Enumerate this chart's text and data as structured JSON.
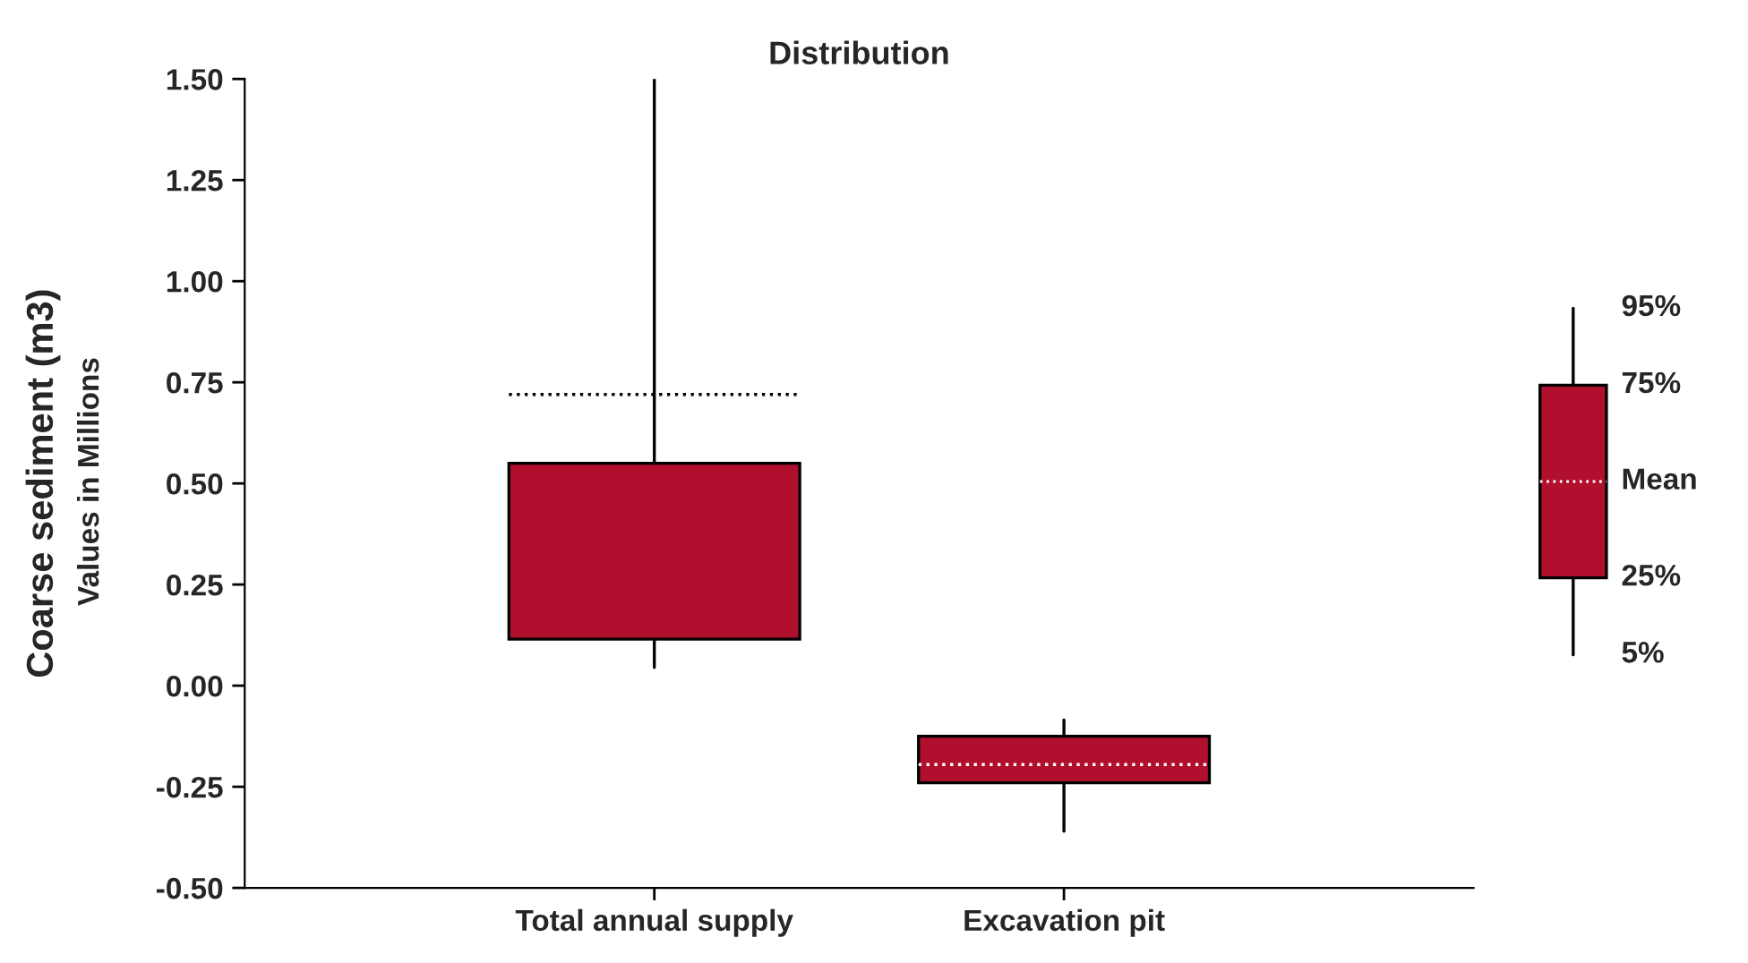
{
  "chart_data": {
    "type": "box",
    "title": "Distribution",
    "ylabel": "Coarse sediment (m3)",
    "annotations": [
      "Values in Millions",
      "95%",
      "75%",
      "Mean",
      "25%",
      "5%"
    ],
    "categories": [
      "Total annual supply",
      "Excavation pit"
    ],
    "color": "#b0102e",
    "boxes": [
      {
        "low": 0.045,
        "q1": 0.115,
        "q3": 0.55,
        "high": 1.5,
        "mean": 0.72
      },
      {
        "low": -0.36,
        "q1": -0.24,
        "q3": -0.125,
        "high": -0.085,
        "mean": -0.195
      }
    ],
    "ylim": [
      -0.5,
      1.5
    ],
    "yticks": [
      {
        "value": -0.5,
        "label": "-0.50"
      },
      {
        "value": -0.25,
        "label": "-0.25"
      },
      {
        "value": 0,
        "label": "0.00"
      },
      {
        "value": 0.25,
        "label": "0.25"
      },
      {
        "value": 0.5,
        "label": "0.50"
      },
      {
        "value": 0.75,
        "label": "0.75"
      },
      {
        "value": 1.0,
        "label": "1.00"
      },
      {
        "value": 1.25,
        "label": "1.25"
      },
      {
        "value": 1.5,
        "label": "1.50"
      }
    ],
    "grid": false
  }
}
